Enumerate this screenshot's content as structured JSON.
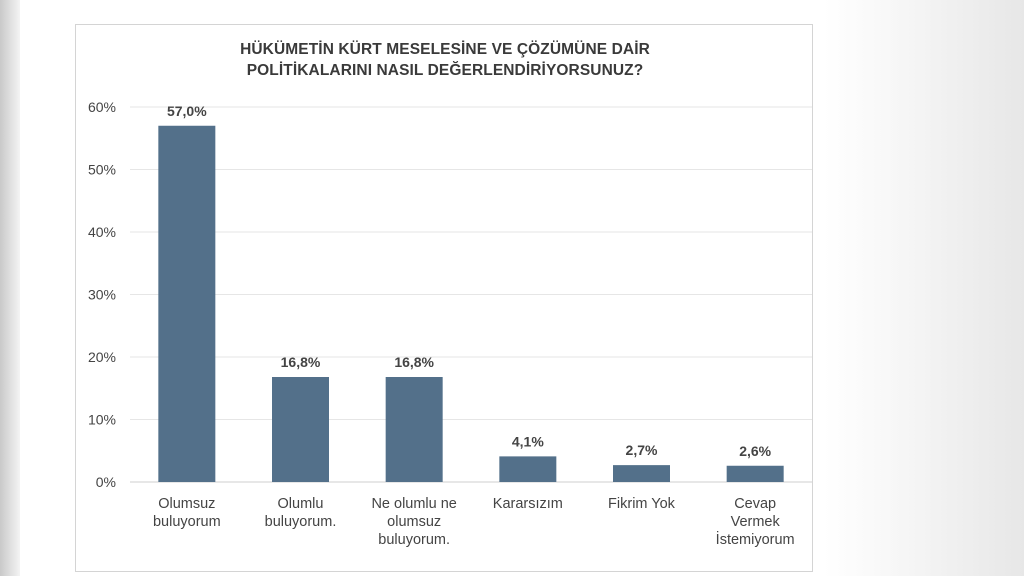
{
  "chart_data": {
    "type": "bar",
    "title_lines": [
      "HÜKÜMETİN KÜRT MESELESİNE VE ÇÖZÜMÜNE DAİR",
      "POLİTİKALARINI NASIL DEĞERLENDİRİYORSUNUZ?"
    ],
    "categories": [
      [
        "Olumsuz",
        "buluyorum"
      ],
      [
        "Olumlu",
        "buluyorum."
      ],
      [
        "Ne olumlu ne",
        "olumsuz",
        "buluyorum."
      ],
      [
        "Kararsızım"
      ],
      [
        "Fikrim Yok"
      ],
      [
        "Cevap",
        "Vermek",
        "İstemiyorum"
      ]
    ],
    "values": [
      57.0,
      16.8,
      16.8,
      4.1,
      2.7,
      2.6
    ],
    "data_labels": [
      "57,0%",
      "16,8%",
      "16,8%",
      "4,1%",
      "2,7%",
      "2,6%"
    ],
    "y_ticks": [
      0,
      10,
      20,
      30,
      40,
      50,
      60
    ],
    "y_tick_labels": [
      "0%",
      "10%",
      "20%",
      "30%",
      "40%",
      "50%",
      "60%"
    ],
    "ylim": [
      0,
      60
    ],
    "grid": true,
    "bar_color": "#53708a",
    "grid_color": "#e6e6e6",
    "axis_color": "#cfcfcf",
    "text_color": "#444444"
  }
}
